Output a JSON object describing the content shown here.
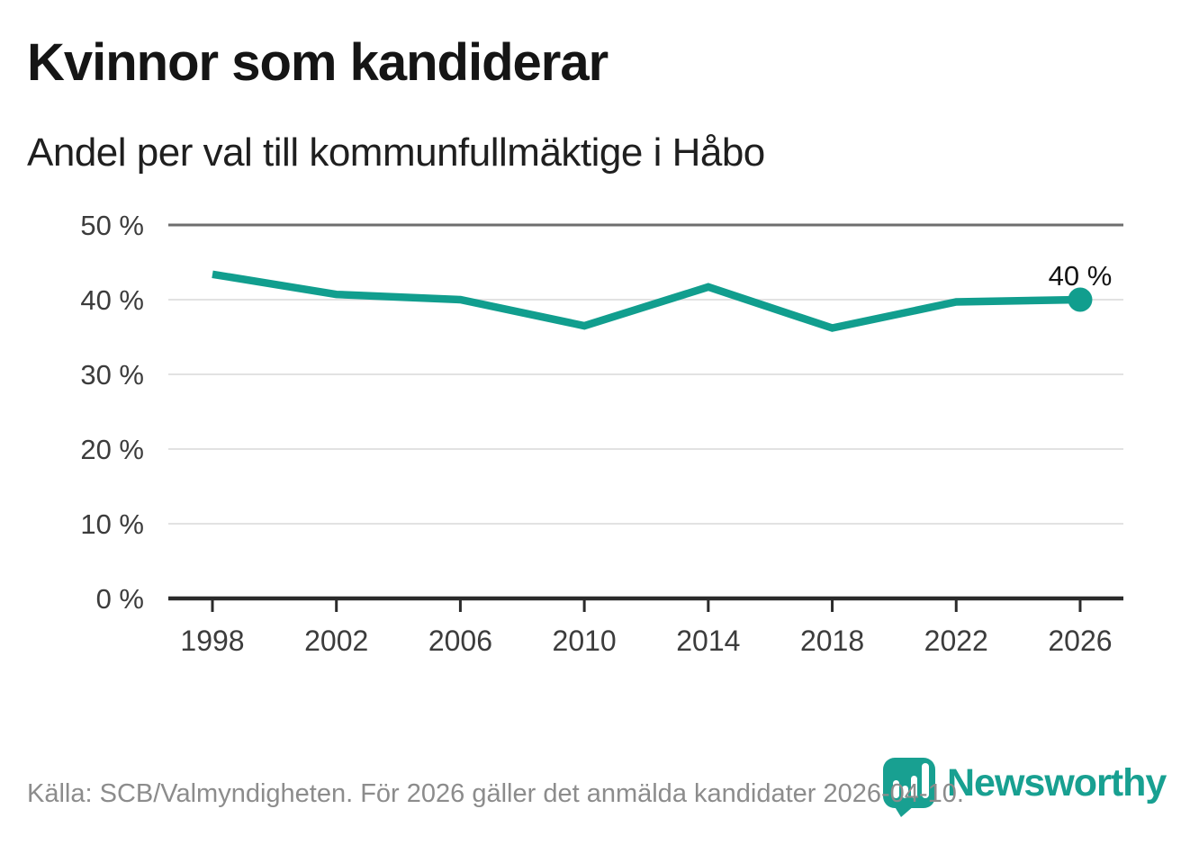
{
  "chart_data": {
    "type": "line",
    "title": "Kvinnor som kandiderar",
    "subtitle": "Andel per val till kommunfullmäktige i Håbo",
    "x_labels": [
      "1998",
      "2002",
      "2006",
      "2010",
      "2014",
      "2018",
      "2022",
      "2026"
    ],
    "values": [
      43.4,
      40.7,
      40.0,
      36.5,
      41.7,
      36.2,
      39.7,
      40.0
    ],
    "ylim": [
      0,
      50
    ],
    "ytick_step": 10,
    "ytick_labels": [
      "0 %",
      "10 %",
      "20 %",
      "30 %",
      "40 %",
      "50 %"
    ],
    "grid": true,
    "legend": "none",
    "end_label": "40 %",
    "line_color": "#119e8e"
  },
  "footer": {
    "source": "Källa: SCB/Valmyndigheten. För 2026 gäller det anmälda kandidater 2026-04-10.",
    "brand": "Newsworthy",
    "logo_icon": "newsworthy-pin-bar-chart-icon"
  },
  "colors": {
    "accent": "#119e8e",
    "title_text": "#151515",
    "axis_text": "#3c3c3c",
    "grid": "#e2e2e2",
    "grid_major": "#6e6e6e",
    "axis": "#2b2b2b",
    "footer_text": "#8c8c8c",
    "end_label_text": "#151515"
  }
}
